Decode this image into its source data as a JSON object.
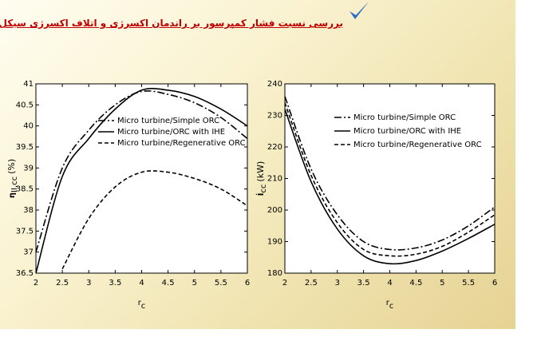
{
  "header": {
    "title": "بررسی نسبت فشار کمپرسور بر راندمان اکسرژی و اتلاف اکسرژی سیکل های ترکیبی"
  },
  "chart_data": [
    {
      "type": "line",
      "legend": "upper center",
      "xlabel": "r",
      "xlabel_sub": "c",
      "ylabel": "η",
      "ylabel_sub": "II,cc",
      "ylabel_unit": "(%)",
      "x": [
        2,
        2.5,
        3,
        3.5,
        4,
        4.5,
        5,
        5.5,
        6
      ],
      "xlim": [
        2,
        6
      ],
      "xticks": [
        2,
        2.5,
        3,
        3.5,
        4,
        4.5,
        5,
        5.5,
        6
      ],
      "ylim": [
        36.5,
        41
      ],
      "yticks": [
        36.5,
        37,
        37.5,
        38,
        38.5,
        39,
        39.5,
        40,
        40.5,
        41
      ],
      "series": [
        {
          "name": "Micro turbine/Simple ORC",
          "color": "#000000",
          "dash": "dashdot",
          "values": [
            37.0,
            39.0,
            39.9,
            40.5,
            40.82,
            40.75,
            40.55,
            40.2,
            39.7
          ]
        },
        {
          "name": "Micro turbine/ORC with IHE",
          "color": "#000000",
          "dash": "solid",
          "values": [
            36.5,
            38.8,
            39.7,
            40.4,
            40.85,
            40.85,
            40.7,
            40.4,
            40.0
          ]
        },
        {
          "name": "Micro turbine/Regenerative ORC",
          "color": "#000000",
          "dash": "dashed",
          "values": [
            null,
            36.6,
            37.8,
            38.55,
            38.9,
            38.9,
            38.75,
            38.5,
            38.1
          ]
        }
      ]
    },
    {
      "type": "line",
      "legend": "upper left",
      "xlabel": "r",
      "xlabel_sub": "c",
      "ylabel": "İ",
      "ylabel_sub": "cc",
      "ylabel_unit": "(kW)",
      "x": [
        2,
        2.5,
        3,
        3.5,
        4,
        4.5,
        5,
        5.5,
        6
      ],
      "xlim": [
        2,
        6
      ],
      "xticks": [
        2,
        2.5,
        3,
        3.5,
        4,
        4.5,
        5,
        5.5,
        6
      ],
      "ylim": [
        180,
        240
      ],
      "yticks": [
        180,
        190,
        200,
        210,
        220,
        230,
        240
      ],
      "series": [
        {
          "name": "Micro turbine/Simple ORC",
          "color": "#000000",
          "dash": "dashdot",
          "values": [
            236,
            213,
            198.5,
            190,
            187.5,
            188,
            190.5,
            195,
            201
          ]
        },
        {
          "name": "Micro turbine/ORC with IHE",
          "color": "#000000",
          "dash": "solid",
          "values": [
            232,
            209,
            194,
            185.5,
            183,
            184,
            187,
            191,
            195.5
          ]
        },
        {
          "name": "Micro turbine/Regenerative ORC",
          "color": "#000000",
          "dash": "dashed",
          "values": [
            234,
            211,
            196,
            187.5,
            185.5,
            186,
            188.5,
            193,
            198.5
          ]
        }
      ]
    }
  ]
}
